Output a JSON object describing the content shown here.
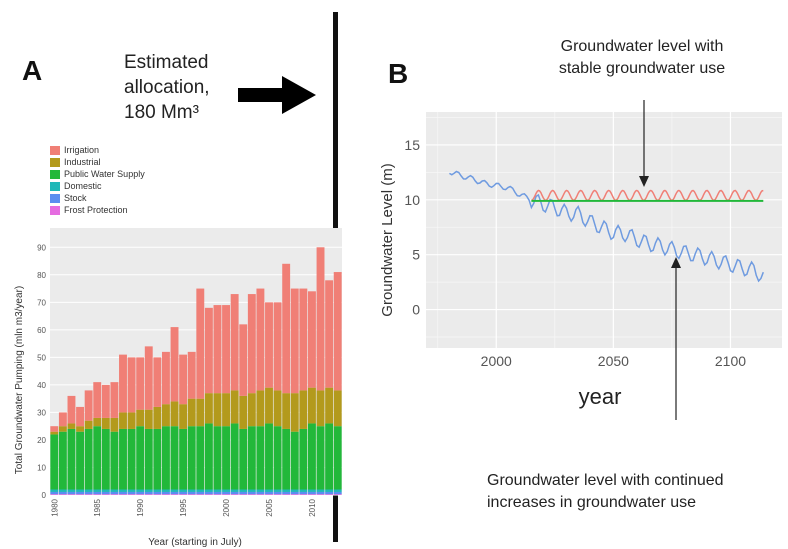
{
  "panel_a": {
    "letter": "A",
    "allocation_lines": [
      "Estimated",
      "allocation,",
      "180 Mm³"
    ]
  },
  "panel_b": {
    "letter": "B",
    "annotation_top": [
      "Groundwater level with",
      "stable groundwater use"
    ],
    "annotation_bottom": [
      "Groundwater level with continued",
      "increases in groundwater use"
    ]
  },
  "colors": {
    "irrigation": "#f07f76",
    "industrial": "#b39a1c",
    "public_water_supply": "#22b83a",
    "domestic": "#1fb8b8",
    "stock": "#5a8ef0",
    "frost_protection": "#e56ce0",
    "panel_bg": "#ebebeb",
    "series_red": "#f07f76",
    "series_green": "#22b83a",
    "series_blue": "#6f9be0"
  },
  "chart_data": [
    {
      "type": "bar",
      "stacked": true,
      "title": "",
      "xlabel": "Year (starting in July)",
      "ylabel": "Total Groundwater Pumping (mln m3/year)",
      "ylim": [
        0,
        97
      ],
      "yticks": [
        0,
        10,
        20,
        30,
        40,
        50,
        60,
        70,
        80,
        90
      ],
      "xtick_labels": [
        "1980",
        "1985",
        "1990",
        "1995",
        "2000",
        "2005",
        "2010"
      ],
      "legend_position": "top",
      "categories": [
        1980,
        1981,
        1982,
        1983,
        1984,
        1985,
        1986,
        1987,
        1988,
        1989,
        1990,
        1991,
        1992,
        1993,
        1994,
        1995,
        1996,
        1997,
        1998,
        1999,
        2000,
        2001,
        2002,
        2003,
        2004,
        2005,
        2006,
        2007,
        2008,
        2009,
        2010,
        2011,
        2012,
        2013
      ],
      "series": [
        {
          "name": "Frost Protection",
          "values": [
            0.3,
            0.3,
            0.3,
            0.3,
            0.3,
            0.3,
            0.3,
            0.3,
            0.3,
            0.3,
            0.3,
            0.3,
            0.3,
            0.3,
            0.3,
            0.3,
            0.3,
            0.3,
            0.3,
            0.3,
            0.3,
            0.3,
            0.3,
            0.3,
            0.3,
            0.3,
            0.3,
            0.3,
            0.3,
            0.3,
            0.3,
            0.3,
            0.3,
            0.3
          ]
        },
        {
          "name": "Stock",
          "values": [
            0.8,
            0.8,
            0.8,
            0.8,
            0.8,
            0.8,
            0.8,
            0.8,
            0.8,
            0.8,
            0.8,
            0.8,
            0.8,
            0.8,
            0.8,
            0.8,
            0.8,
            0.8,
            0.8,
            0.8,
            0.8,
            0.8,
            0.8,
            0.8,
            0.8,
            0.8,
            0.8,
            0.8,
            0.8,
            0.8,
            0.8,
            0.8,
            0.8,
            0.8
          ]
        },
        {
          "name": "Domestic",
          "values": [
            0.9,
            0.9,
            0.9,
            0.9,
            0.9,
            0.9,
            0.9,
            0.9,
            0.9,
            0.9,
            0.9,
            0.9,
            0.9,
            0.9,
            0.9,
            0.9,
            0.9,
            0.9,
            0.9,
            0.9,
            0.9,
            0.9,
            0.9,
            0.9,
            0.9,
            0.9,
            0.9,
            0.9,
            0.9,
            0.9,
            0.9,
            0.9,
            0.9,
            0.9
          ]
        },
        {
          "name": "Public Water Supply",
          "values": [
            20,
            21,
            22,
            21,
            22,
            23,
            22,
            21,
            22,
            22,
            23,
            22,
            22,
            23,
            23,
            22,
            23,
            23,
            24,
            23,
            23,
            24,
            22,
            23,
            23,
            24,
            23,
            22,
            21,
            22,
            24,
            23,
            24,
            23
          ]
        },
        {
          "name": "Industrial",
          "values": [
            1,
            2,
            2,
            2,
            3,
            3,
            4,
            5,
            6,
            6,
            6,
            7,
            8,
            8,
            9,
            9,
            10,
            10,
            11,
            12,
            12,
            12,
            12,
            12,
            13,
            13,
            13,
            13,
            14,
            14,
            13,
            13,
            13,
            13
          ]
        },
        {
          "name": "Irrigation",
          "values": [
            2,
            5,
            10,
            7,
            11,
            13,
            12,
            13,
            21,
            20,
            19,
            23,
            18,
            19,
            27,
            18,
            17,
            40,
            31,
            32,
            32,
            35,
            26,
            36,
            37,
            31,
            32,
            47,
            38,
            37,
            35,
            52,
            39,
            43
          ]
        }
      ]
    },
    {
      "type": "line",
      "title": "",
      "xlabel": "year",
      "ylabel": "Groundwater Level (m)",
      "xlim": [
        1970,
        2122
      ],
      "ylim": [
        -3.5,
        18
      ],
      "xticks": [
        2000,
        2050,
        2100
      ],
      "yticks": [
        0,
        5,
        10,
        15
      ],
      "grid": true,
      "series": [
        {
          "x": [
            1980,
            1985,
            1990,
            1995,
            2000,
            2005,
            2010,
            2015,
            2020,
            2025,
            2030,
            2035,
            2040,
            2045,
            2050,
            2055,
            2060,
            2065,
            2070,
            2075,
            2080,
            2085,
            2090,
            2095,
            2100,
            2105,
            2110,
            2114
          ],
          "y": [
            12.6,
            12.2,
            11.9,
            11.5,
            11.3,
            11.1,
            10.5,
            10.0,
            9.6,
            9.3,
            8.8,
            8.7,
            8.0,
            7.5,
            7.0,
            6.9,
            6.4,
            6.0,
            5.8,
            5.5,
            5.2,
            5.0,
            4.7,
            4.4,
            4.1,
            3.8,
            3.6,
            3.0
          ]
        },
        {
          "x": [
            2015,
            2114
          ],
          "y": [
            10.4,
            10.4
          ]
        },
        {
          "x": [
            2015,
            2114
          ],
          "y": [
            9.9,
            9.9
          ]
        }
      ]
    }
  ]
}
